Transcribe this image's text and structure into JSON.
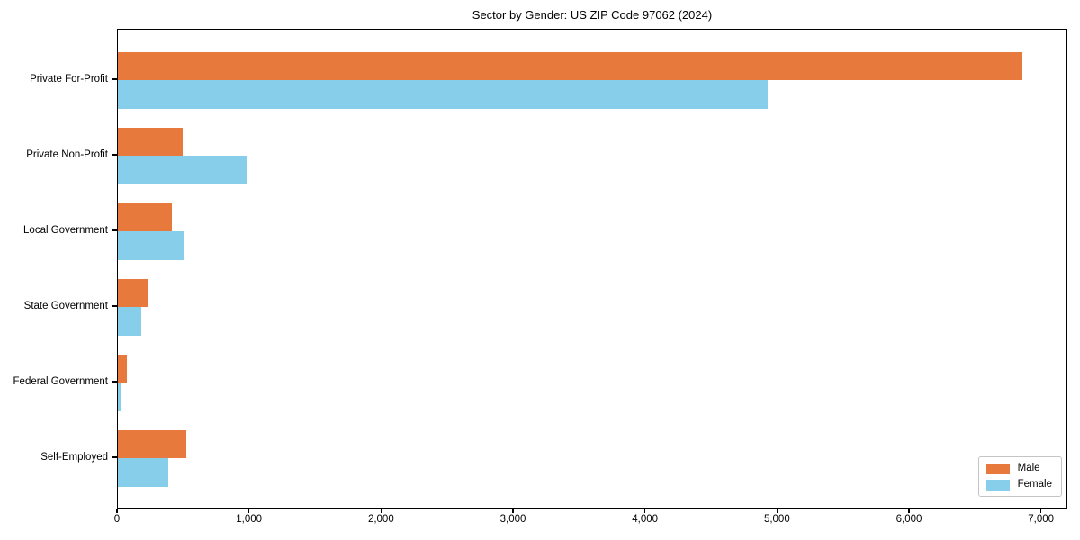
{
  "chart_data": {
    "type": "bar",
    "orientation": "horizontal",
    "title": "Sector by Gender: US ZIP Code 97062 (2024)",
    "categories": [
      "Private For-Profit",
      "Private Non-Profit",
      "Local Government",
      "State Government",
      "Federal Government",
      "Self-Employed"
    ],
    "series": [
      {
        "name": "Male",
        "color": "#e8793c",
        "values": [
          6850,
          490,
          410,
          235,
          65,
          515
        ]
      },
      {
        "name": "Female",
        "color": "#87ceeb",
        "values": [
          4920,
          985,
          495,
          180,
          30,
          380
        ]
      }
    ],
    "xlabel": "",
    "ylabel": "",
    "xlim": [
      0,
      7200
    ],
    "xticks": [
      0,
      1000,
      2000,
      3000,
      4000,
      5000,
      6000,
      7000
    ],
    "xtick_labels": [
      "0",
      "1,000",
      "2,000",
      "3,000",
      "4,000",
      "5,000",
      "6,000",
      "7,000"
    ],
    "grid": false,
    "legend": {
      "position": "lower right"
    },
    "colors": {
      "axis": "#000000",
      "legend_border": "#c4c4c4",
      "background": "#ffffff"
    }
  }
}
